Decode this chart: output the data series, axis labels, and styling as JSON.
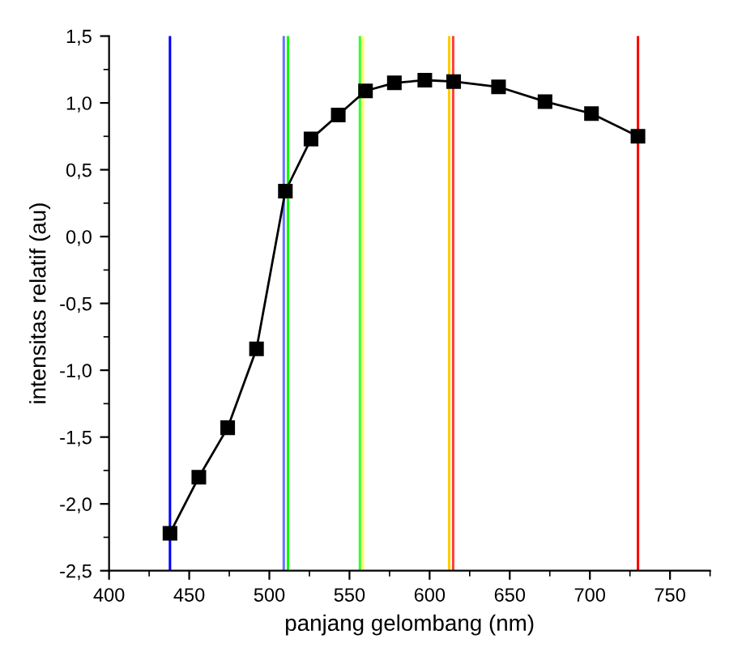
{
  "chart_data": {
    "type": "line",
    "xlabel": "panjang gelombang (nm)",
    "ylabel": "intensitas relatif (au)",
    "x": [
      438,
      456,
      474,
      492,
      510,
      526,
      543,
      560,
      578,
      597,
      615,
      643,
      672,
      701,
      730
    ],
    "series": [
      {
        "color": "#000000",
        "values": [
          -2.22,
          -1.8,
          -1.43,
          -0.84,
          0.34,
          0.73,
          0.91,
          1.09,
          1.15,
          1.17,
          1.16,
          1.12,
          1.01,
          0.92,
          0.75
        ]
      }
    ],
    "marker": "square",
    "line_style": "solid",
    "grid": false,
    "legend": false,
    "xlim": [
      400,
      775
    ],
    "xticks": [
      400,
      450,
      500,
      550,
      600,
      650,
      700,
      750
    ],
    "ylim": [
      -2.5,
      1.5
    ],
    "yticks": [
      {
        "value": -2.5,
        "label": "-2,5"
      },
      {
        "value": -2.0,
        "label": "-2,0"
      },
      {
        "value": -1.5,
        "label": "-1,5"
      },
      {
        "value": -1.0,
        "label": "-1,0"
      },
      {
        "value": -0.5,
        "label": "-0,5"
      },
      {
        "value": 0.0,
        "label": "0,0"
      },
      {
        "value": 0.5,
        "label": "0,5"
      },
      {
        "value": 1.0,
        "label": "1,0"
      },
      {
        "value": 1.5,
        "label": "1,5"
      }
    ],
    "ref_lines": [
      {
        "axis": "x",
        "value": 438,
        "color": "#0000ff"
      },
      {
        "axis": "x",
        "value": 509,
        "color": "#7070ff"
      },
      {
        "axis": "x",
        "value": 511.6,
        "color": "#00ff00"
      },
      {
        "axis": "x",
        "value": 556.5,
        "color": "#33ff33"
      },
      {
        "axis": "x",
        "value": 558.4,
        "color": "#ffff66"
      },
      {
        "axis": "x",
        "value": 612.2,
        "color": "#ffcc00"
      },
      {
        "axis": "x",
        "value": 614.7,
        "color": "#ff4040"
      },
      {
        "axis": "x",
        "value": 730,
        "color": "#ff0000"
      }
    ]
  }
}
